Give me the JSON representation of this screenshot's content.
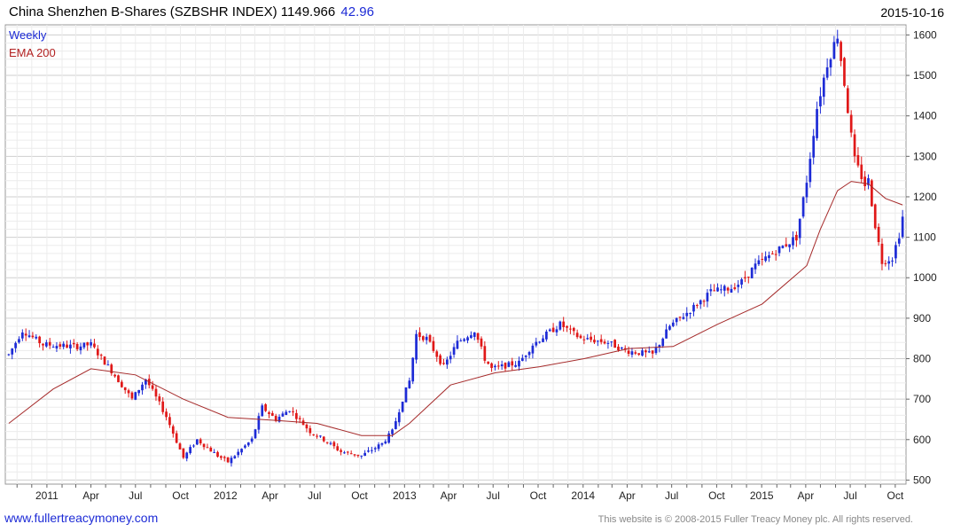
{
  "header": {
    "title": "China Shenzhen B-Shares (SZBSHR INDEX) 1149.966",
    "change": "42.96",
    "date": "2015-10-16"
  },
  "legend": {
    "weekly": "Weekly",
    "ema": "EMA 200"
  },
  "footer": {
    "website": "www.fullertreacymoney.com",
    "copyright": "This website is © 2008-2015 Fuller Treacy Money plc. All rights reserved."
  },
  "colors": {
    "up": "#1d2bd6",
    "down": "#e01818",
    "ema": "#a52a2a",
    "grid": "#dcdcdc"
  },
  "chart_data": {
    "type": "candlestick",
    "title": "China Shenzhen B-Shares (SZBSHR INDEX) 1149.966",
    "ylim": [
      490,
      1625
    ],
    "yticks": [
      500,
      600,
      700,
      800,
      900,
      1000,
      1100,
      1200,
      1300,
      1400,
      1500,
      1600
    ],
    "xticks": [
      {
        "label": "2011",
        "date": "2011-01-01"
      },
      {
        "label": "Apr",
        "date": "2011-04-01"
      },
      {
        "label": "Jul",
        "date": "2011-07-01"
      },
      {
        "label": "Oct",
        "date": "2011-10-01"
      },
      {
        "label": "2012",
        "date": "2012-01-01"
      },
      {
        "label": "Apr",
        "date": "2012-04-01"
      },
      {
        "label": "Jul",
        "date": "2012-07-01"
      },
      {
        "label": "Oct",
        "date": "2012-10-01"
      },
      {
        "label": "2013",
        "date": "2013-01-01"
      },
      {
        "label": "Apr",
        "date": "2013-04-01"
      },
      {
        "label": "Jul",
        "date": "2013-07-01"
      },
      {
        "label": "Oct",
        "date": "2013-10-01"
      },
      {
        "label": "2014",
        "date": "2014-01-01"
      },
      {
        "label": "Apr",
        "date": "2014-04-01"
      },
      {
        "label": "Jul",
        "date": "2014-07-01"
      },
      {
        "label": "Oct",
        "date": "2014-10-01"
      },
      {
        "label": "2015",
        "date": "2015-01-01"
      },
      {
        "label": "Apr",
        "date": "2015-04-01"
      },
      {
        "label": "Jul",
        "date": "2015-07-01"
      },
      {
        "label": "Oct",
        "date": "2015-10-01"
      }
    ],
    "price_path": [
      [
        "2010-10-15",
        810
      ],
      [
        "2010-11-12",
        870
      ],
      [
        "2010-12-24",
        835
      ],
      [
        "2011-03-01",
        830
      ],
      [
        "2011-04-01",
        835
      ],
      [
        "2011-05-13",
        770
      ],
      [
        "2011-06-24",
        700
      ],
      [
        "2011-07-22",
        750
      ],
      [
        "2011-09-01",
        660
      ],
      [
        "2011-10-07",
        555
      ],
      [
        "2011-11-04",
        600
      ],
      [
        "2011-12-16",
        560
      ],
      [
        "2012-01-06",
        545
      ],
      [
        "2012-02-24",
        600
      ],
      [
        "2012-03-16",
        680
      ],
      [
        "2012-04-13",
        650
      ],
      [
        "2012-05-11",
        675
      ],
      [
        "2012-06-22",
        620
      ],
      [
        "2012-07-20",
        600
      ],
      [
        "2012-08-24",
        570
      ],
      [
        "2012-10-05",
        560
      ],
      [
        "2012-11-16",
        590
      ],
      [
        "2012-12-07",
        620
      ],
      [
        "2012-12-28",
        700
      ],
      [
        "2013-01-11",
        745
      ],
      [
        "2013-01-25",
        860
      ],
      [
        "2013-02-15",
        850
      ],
      [
        "2013-03-22",
        780
      ],
      [
        "2013-04-19",
        840
      ],
      [
        "2013-05-24",
        870
      ],
      [
        "2013-06-14",
        800
      ],
      [
        "2013-06-28",
        775
      ],
      [
        "2013-08-23",
        790
      ],
      [
        "2013-09-20",
        835
      ],
      [
        "2013-11-15",
        885
      ],
      [
        "2013-12-27",
        850
      ],
      [
        "2014-02-21",
        840
      ],
      [
        "2014-03-28",
        820
      ],
      [
        "2014-05-23",
        810
      ],
      [
        "2014-06-27",
        880
      ],
      [
        "2014-08-08",
        920
      ],
      [
        "2014-09-19",
        965
      ],
      [
        "2014-10-31",
        975
      ],
      [
        "2014-11-21",
        990
      ],
      [
        "2014-12-19",
        1030
      ],
      [
        "2015-01-23",
        1060
      ],
      [
        "2015-03-13",
        1100
      ],
      [
        "2015-04-03",
        1240
      ],
      [
        "2015-04-10",
        1300
      ],
      [
        "2015-04-24",
        1420
      ],
      [
        "2015-05-15",
        1530
      ],
      [
        "2015-06-05",
        1600
      ],
      [
        "2015-06-19",
        1480
      ],
      [
        "2015-07-03",
        1350
      ],
      [
        "2015-07-10",
        1290
      ],
      [
        "2015-07-31",
        1230
      ],
      [
        "2015-08-07",
        1240
      ],
      [
        "2015-08-21",
        1130
      ],
      [
        "2015-09-04",
        1040
      ],
      [
        "2015-09-25",
        1050
      ],
      [
        "2015-10-09",
        1107
      ],
      [
        "2015-10-16",
        1150
      ]
    ],
    "ema_200": [
      [
        "2010-10-15",
        640
      ],
      [
        "2011-01-14",
        725
      ],
      [
        "2011-04-01",
        775
      ],
      [
        "2011-07-01",
        760
      ],
      [
        "2011-10-07",
        700
      ],
      [
        "2012-01-06",
        655
      ],
      [
        "2012-04-06",
        648
      ],
      [
        "2012-07-06",
        640
      ],
      [
        "2012-10-05",
        610
      ],
      [
        "2012-12-07",
        610
      ],
      [
        "2013-01-11",
        640
      ],
      [
        "2013-04-05",
        735
      ],
      [
        "2013-07-05",
        765
      ],
      [
        "2013-10-04",
        780
      ],
      [
        "2014-01-03",
        800
      ],
      [
        "2014-04-04",
        825
      ],
      [
        "2014-07-04",
        830
      ],
      [
        "2014-10-03",
        885
      ],
      [
        "2015-01-02",
        935
      ],
      [
        "2015-04-03",
        1030
      ],
      [
        "2015-05-01",
        1120
      ],
      [
        "2015-06-05",
        1215
      ],
      [
        "2015-07-03",
        1238
      ],
      [
        "2015-08-07",
        1232
      ],
      [
        "2015-09-11",
        1196
      ],
      [
        "2015-10-16",
        1180
      ]
    ],
    "series": [
      {
        "name": "Weekly",
        "role": "candles"
      },
      {
        "name": "EMA 200",
        "role": "ema_200"
      }
    ],
    "grid": true,
    "legend_position": "top-left"
  }
}
